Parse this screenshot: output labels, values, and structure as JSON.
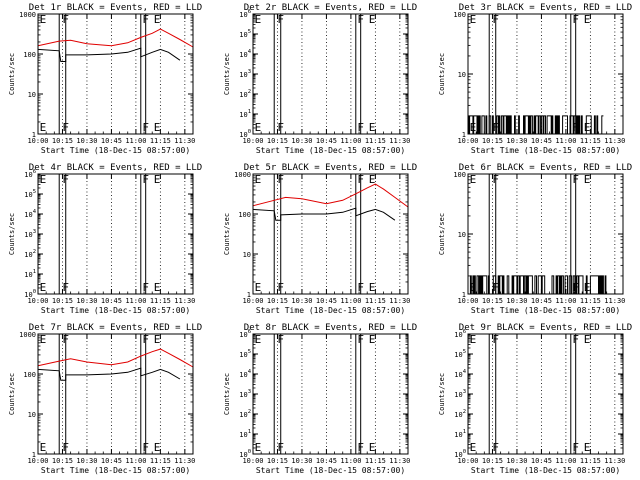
{
  "colors": {
    "events": "#000000",
    "lld": "#e00000",
    "background": "#ffffff"
  },
  "axis": {
    "x_tick_labels": [
      "10:00",
      "10:15",
      "10:30",
      "10:45",
      "11:00",
      "11:15",
      "11:30"
    ],
    "x_label": "Start Time (18-Dec-15 08:57:00)",
    "y_label": "Counts/sec",
    "dotted_times": [
      "10:15",
      "10:30",
      "10:45",
      "11:00",
      "11:15",
      "11:30"
    ]
  },
  "markers": [
    {
      "label": "E",
      "time": "10:03"
    },
    {
      "label": "F",
      "time": "10:17"
    },
    {
      "label": "F",
      "time": "11:06"
    },
    {
      "label": "E",
      "time": "11:13"
    }
  ],
  "bands": [
    {
      "start": "10:13",
      "end": "10:17"
    },
    {
      "start": "11:03",
      "end": "11:06"
    }
  ],
  "chart_data": [
    {
      "type": "line",
      "title": "Det 1r BLACK = Events, RED = LLD",
      "xlim": [
        "10:00",
        "11:35"
      ],
      "ylog": true,
      "ylim": [
        1,
        1000
      ],
      "y_tick_labels": [
        "1",
        "10",
        "100",
        "1000"
      ],
      "series": [
        {
          "name": "Events",
          "color": "#000000",
          "x": [
            "10:00",
            "10:13",
            "10:14",
            "10:17",
            "10:17",
            "10:30",
            "10:45",
            "10:55",
            "11:03",
            "11:03",
            "11:10",
            "11:15",
            "11:20",
            "11:27"
          ],
          "y": [
            130,
            120,
            65,
            65,
            95,
            95,
            100,
            110,
            140,
            85,
            110,
            130,
            110,
            70
          ]
        },
        {
          "name": "LLD",
          "color": "#e00000",
          "x": [
            "10:00",
            "10:13",
            "10:20",
            "10:30",
            "10:45",
            "10:55",
            "11:03",
            "11:10",
            "11:15",
            "11:20",
            "11:27",
            "11:35"
          ],
          "y": [
            160,
            210,
            220,
            180,
            160,
            190,
            260,
            330,
            420,
            330,
            230,
            150
          ]
        }
      ]
    },
    {
      "type": "line",
      "title": "Det 2r BLACK = Events, RED = LLD",
      "xlim": [
        "10:00",
        "11:35"
      ],
      "ylog": true,
      "ylim": [
        1,
        1000000
      ],
      "y_tick_labels": [
        "10^0",
        "10^1",
        "10^2",
        "10^3",
        "10^4",
        "10^5",
        "10^6"
      ],
      "series": []
    },
    {
      "type": "line",
      "title": "Det 3r BLACK = Events, RED = LLD",
      "xlim": [
        "10:00",
        "11:35"
      ],
      "ylog": true,
      "ylim": [
        1,
        100
      ],
      "y_tick_labels": [
        "1",
        "10",
        "100"
      ],
      "series": [
        {
          "name": "Events",
          "color": "#000000",
          "noisy": true,
          "x": [
            "10:00",
            "11:23"
          ],
          "y": [
            1,
            2
          ]
        },
        {
          "name": "LLD",
          "color": "#e00000",
          "x": [
            "10:28",
            "10:45"
          ],
          "y": [
            100,
            100
          ]
        }
      ]
    },
    {
      "type": "line",
      "title": "Det 4r BLACK = Events, RED = LLD",
      "xlim": [
        "10:00",
        "11:35"
      ],
      "ylog": true,
      "ylim": [
        1,
        1000000
      ],
      "y_tick_labels": [
        "10^0",
        "10^1",
        "10^2",
        "10^3",
        "10^4",
        "10^5",
        "10^6"
      ],
      "series": []
    },
    {
      "type": "line",
      "title": "Det 5r BLACK = Events, RED = LLD",
      "xlim": [
        "10:00",
        "11:35"
      ],
      "ylog": true,
      "ylim": [
        1,
        1000
      ],
      "y_tick_labels": [
        "1",
        "10",
        "100",
        "1000"
      ],
      "series": [
        {
          "name": "Events",
          "color": "#000000",
          "x": [
            "10:00",
            "10:13",
            "10:14",
            "10:17",
            "10:17",
            "10:30",
            "10:45",
            "10:55",
            "11:03",
            "11:03",
            "11:10",
            "11:15",
            "11:20",
            "11:27"
          ],
          "y": [
            130,
            120,
            70,
            70,
            95,
            100,
            100,
            110,
            140,
            90,
            115,
            130,
            110,
            70
          ]
        },
        {
          "name": "LLD",
          "color": "#e00000",
          "x": [
            "10:00",
            "10:13",
            "10:20",
            "10:30",
            "10:45",
            "10:55",
            "11:03",
            "11:10",
            "11:15",
            "11:20",
            "11:27",
            "11:35"
          ],
          "y": [
            160,
            220,
            260,
            240,
            180,
            220,
            320,
            450,
            560,
            420,
            260,
            150
          ]
        }
      ]
    },
    {
      "type": "line",
      "title": "Det 6r BLACK = Events, RED = LLD",
      "xlim": [
        "10:00",
        "11:35"
      ],
      "ylog": true,
      "ylim": [
        1,
        100
      ],
      "y_tick_labels": [
        "1",
        "10",
        "100"
      ],
      "series": [
        {
          "name": "Events",
          "color": "#000000",
          "noisy": true,
          "x": [
            "10:00",
            "11:25"
          ],
          "y": [
            1,
            2
          ]
        },
        {
          "name": "LLD",
          "color": "#e00000",
          "x": [
            "10:28",
            "10:43"
          ],
          "y": [
            100,
            100
          ]
        }
      ]
    },
    {
      "type": "line",
      "title": "Det 7r BLACK = Events, RED = LLD",
      "xlim": [
        "10:00",
        "11:35"
      ],
      "ylog": true,
      "ylim": [
        1,
        1000
      ],
      "y_tick_labels": [
        "1",
        "10",
        "100",
        "1000"
      ],
      "series": [
        {
          "name": "Events",
          "color": "#000000",
          "x": [
            "10:00",
            "10:13",
            "10:14",
            "10:17",
            "10:17",
            "10:30",
            "10:45",
            "10:55",
            "11:03",
            "11:03",
            "11:10",
            "11:15",
            "11:20",
            "11:27"
          ],
          "y": [
            130,
            120,
            70,
            70,
            95,
            95,
            100,
            110,
            140,
            90,
            110,
            130,
            110,
            75
          ]
        },
        {
          "name": "LLD",
          "color": "#e00000",
          "x": [
            "10:00",
            "10:13",
            "10:20",
            "10:30",
            "10:45",
            "10:55",
            "11:03",
            "11:10",
            "11:15",
            "11:20",
            "11:27",
            "11:35"
          ],
          "y": [
            160,
            210,
            240,
            200,
            170,
            200,
            280,
            360,
            420,
            330,
            230,
            150
          ]
        }
      ]
    },
    {
      "type": "line",
      "title": "Det 8r BLACK = Events, RED = LLD",
      "xlim": [
        "10:00",
        "11:35"
      ],
      "ylog": true,
      "ylim": [
        1,
        1000000
      ],
      "y_tick_labels": [
        "10^0",
        "10^1",
        "10^2",
        "10^3",
        "10^4",
        "10^5",
        "10^6"
      ],
      "series": []
    },
    {
      "type": "line",
      "title": "Det 9r BLACK = Events, RED = LLD",
      "xlim": [
        "10:00",
        "11:35"
      ],
      "ylog": true,
      "ylim": [
        1,
        1000000
      ],
      "y_tick_labels": [
        "10^0",
        "10^1",
        "10^2",
        "10^3",
        "10^4",
        "10^5",
        "10^6"
      ],
      "series": []
    }
  ]
}
